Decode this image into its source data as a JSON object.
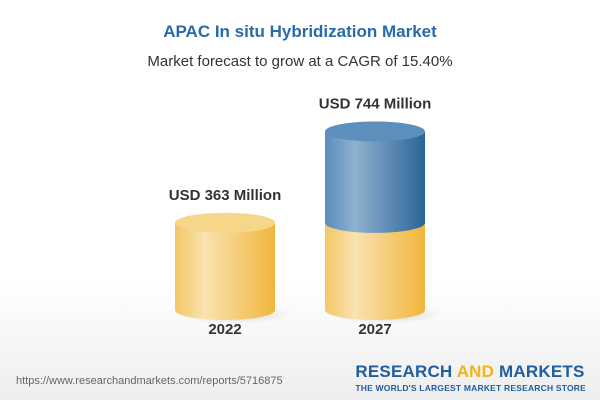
{
  "title": "APAC In situ Hybridization Market",
  "subtitle": "Market forecast to grow at a CAGR of 15.40%",
  "chart_data": {
    "type": "bar",
    "style": "3d-cylinder",
    "categories": [
      "2022",
      "2027"
    ],
    "values": [
      363,
      744
    ],
    "data_labels": [
      "USD 363 Million",
      "USD 744 Million"
    ],
    "unit": "USD Million",
    "cagr": "15.40%",
    "colors": {
      "base": "#f2c14e",
      "growth": "#3d77ab"
    }
  },
  "footer": {
    "url": "https://www.researchandmarkets.com/reports/5716875",
    "logo_part1": "RESEARCH ",
    "logo_part2": "AND",
    "logo_part3": " MARKETS",
    "tagline": "THE WORLD'S LARGEST MARKET RESEARCH STORE"
  }
}
